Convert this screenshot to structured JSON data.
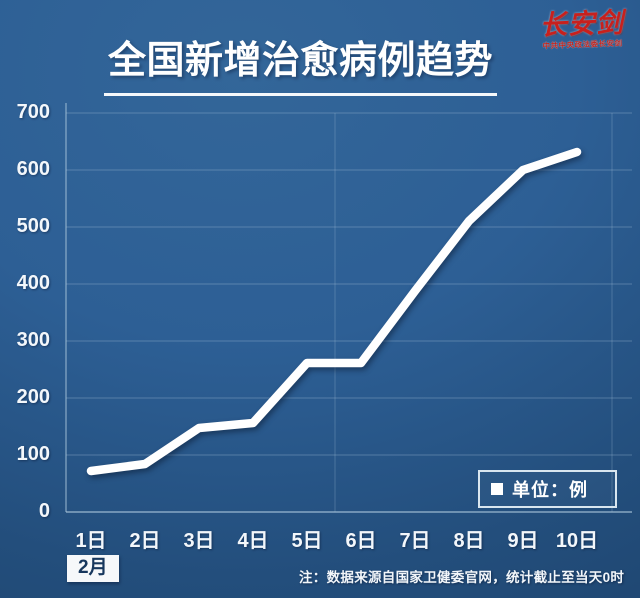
{
  "page": {
    "title": "全国新增治愈病例趋势",
    "logo": {
      "name": "长安剑",
      "subtitle": "中共中央政法委长安剑"
    },
    "month_label": "2月",
    "legend_label": "单位：例",
    "note": "注：数据来源自国家卫健委官网，统计截止至当天0时"
  },
  "chart_data": {
    "type": "line",
    "title": "全国新增治愈病例趋势",
    "categories": [
      "1日",
      "2日",
      "3日",
      "4日",
      "5日",
      "6日",
      "7日",
      "8日",
      "9日",
      "10日"
    ],
    "values": [
      72,
      85,
      147,
      157,
      262,
      261,
      387,
      510,
      600,
      632
    ],
    "xlabel": "2月",
    "ylabel": "",
    "unit": "例",
    "ylim": [
      0,
      700
    ],
    "ytick_step": 100,
    "yticks": [
      0,
      100,
      200,
      300,
      400,
      500,
      600,
      700
    ],
    "grid": true,
    "legend_position": "bottom-right",
    "line_color": "#ffffff",
    "background_color": "#2d5f95",
    "grid_color": "#a9c4da",
    "label_color": "#f3f7fb",
    "accent_red": "#c8201d"
  }
}
